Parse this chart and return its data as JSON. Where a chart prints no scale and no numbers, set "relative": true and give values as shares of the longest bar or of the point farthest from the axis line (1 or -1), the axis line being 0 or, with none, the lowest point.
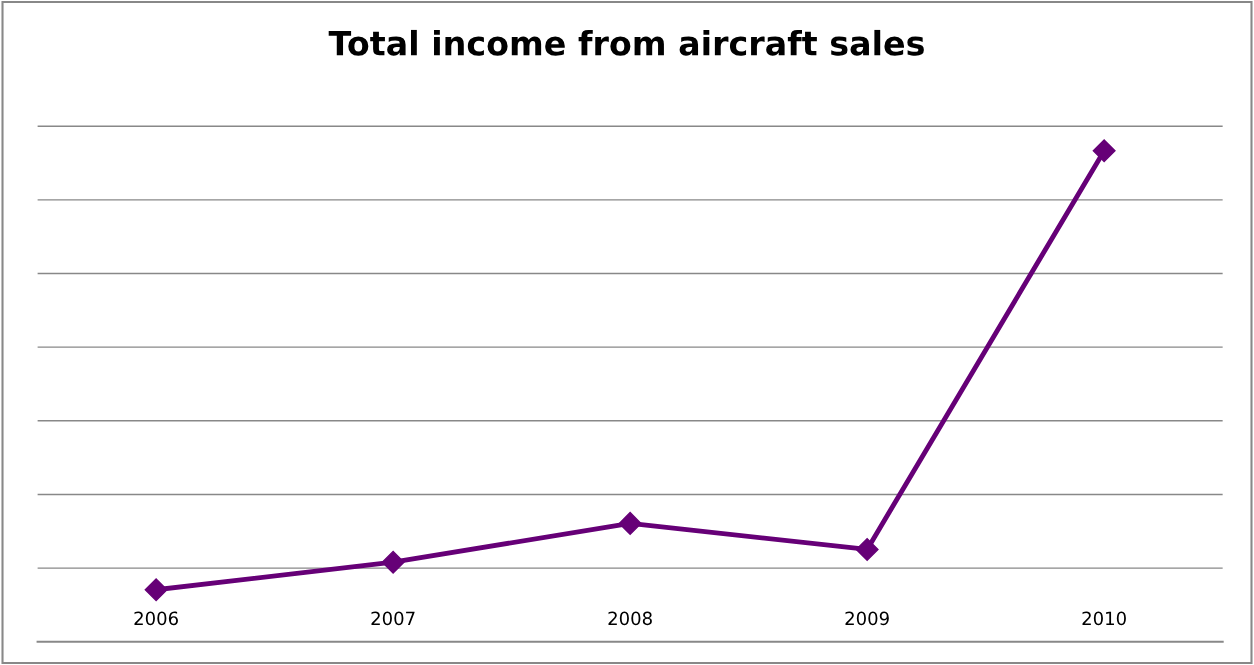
{
  "chart_data": {
    "type": "line",
    "title": "Total income from aircraft sales",
    "categories": [
      "2006",
      "2007",
      "2008",
      "2009",
      "2010"
    ],
    "series": [
      {
        "color": "#660077",
        "values": [
          0.106,
          0.162,
          0.241,
          0.188,
          1
        ]
      }
    ],
    "relative": true,
    "grid": "y",
    "marker": "diamond",
    "line_style": "solid"
  }
}
